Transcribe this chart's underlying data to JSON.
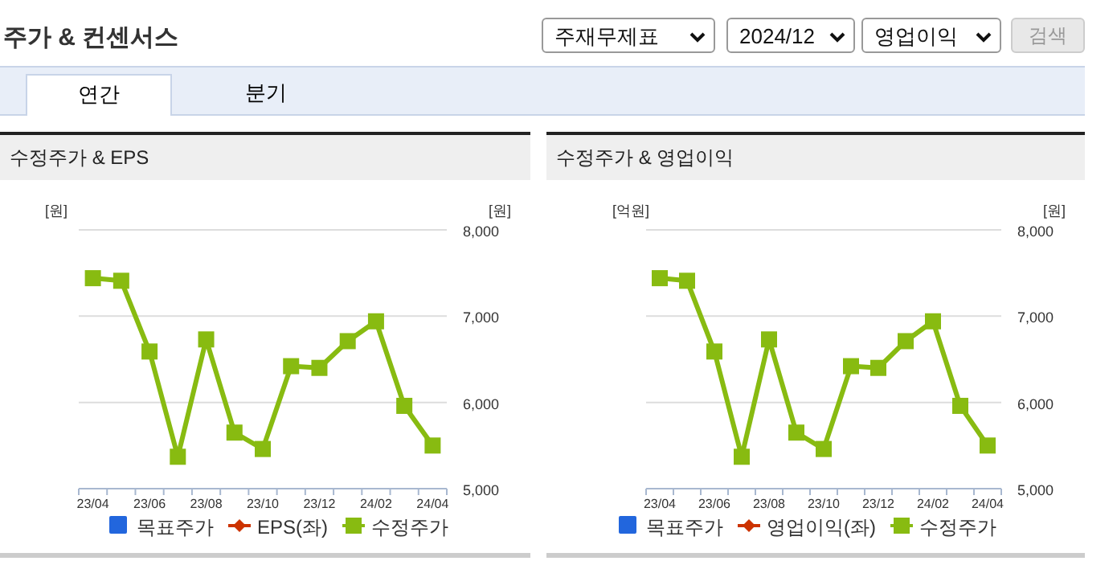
{
  "chart_data": [
    {
      "type": "other",
      "title": "주가 & 컨센서스",
      "annotations": [
        "주재무제표",
        "2024/12",
        "영업이익",
        "검색",
        "연간",
        "분기"
      ]
    },
    {
      "type": "line",
      "title": "수정주가 & EPS",
      "ylabel": "[원]",
      "y2label": "[원]",
      "categories": [
        "23/04",
        null,
        "23/06",
        null,
        "23/08",
        null,
        "23/10",
        null,
        "23/12",
        null,
        "24/02",
        null,
        "24/04"
      ],
      "series": [
        {
          "name": "목표주가",
          "type": "bar",
          "color": "#2266dd",
          "values": [
            null,
            null,
            null,
            null,
            null,
            null,
            null,
            null,
            null,
            null,
            null,
            null,
            null
          ]
        },
        {
          "name": "EPS(좌)",
          "type": "line",
          "color": "#cc3300",
          "values": [
            null,
            null,
            null,
            null,
            null,
            null,
            null,
            null,
            null,
            null,
            null,
            null,
            null
          ]
        },
        {
          "name": "수정주가",
          "type": "line",
          "axis": "y2",
          "color": "#88bb11",
          "values": [
            7440,
            7410,
            6590,
            5370,
            6730,
            5650,
            5460,
            6420,
            6400,
            6710,
            6940,
            5960,
            5500
          ]
        }
      ],
      "y2lim": [
        5000,
        8000
      ],
      "y2ticks": [
        {
          "value": 5000,
          "label": "5,000"
        },
        {
          "value": 6000,
          "label": "6,000"
        },
        {
          "value": 7000,
          "label": "7,000"
        },
        {
          "value": 8000,
          "label": "8,000"
        }
      ],
      "grid": "y",
      "legend": "bottom",
      "marker": "square"
    },
    {
      "type": "line",
      "title": "수정주가 & 영업이익",
      "ylabel": "[억원]",
      "y2label": "[원]",
      "categories": [
        "23/04",
        null,
        "23/06",
        null,
        "23/08",
        null,
        "23/10",
        null,
        "23/12",
        null,
        "24/02",
        null,
        "24/04"
      ],
      "series": [
        {
          "name": "목표주가",
          "type": "bar",
          "color": "#2266dd",
          "values": [
            null,
            null,
            null,
            null,
            null,
            null,
            null,
            null,
            null,
            null,
            null,
            null,
            null
          ]
        },
        {
          "name": "영업이익(좌)",
          "type": "line",
          "color": "#cc3300",
          "values": [
            null,
            null,
            null,
            null,
            null,
            null,
            null,
            null,
            null,
            null,
            null,
            null,
            null
          ]
        },
        {
          "name": "수정주가",
          "type": "line",
          "axis": "y2",
          "color": "#88bb11",
          "values": [
            7440,
            7410,
            6590,
            5370,
            6730,
            5650,
            5460,
            6420,
            6400,
            6710,
            6940,
            5960,
            5500
          ]
        }
      ],
      "y2lim": [
        5000,
        8000
      ],
      "y2ticks": [
        {
          "value": 5000,
          "label": "5,000"
        },
        {
          "value": 6000,
          "label": "6,000"
        },
        {
          "value": 7000,
          "label": "7,000"
        },
        {
          "value": 8000,
          "label": "8,000"
        }
      ],
      "grid": "y",
      "legend": "bottom",
      "marker": "square"
    }
  ]
}
